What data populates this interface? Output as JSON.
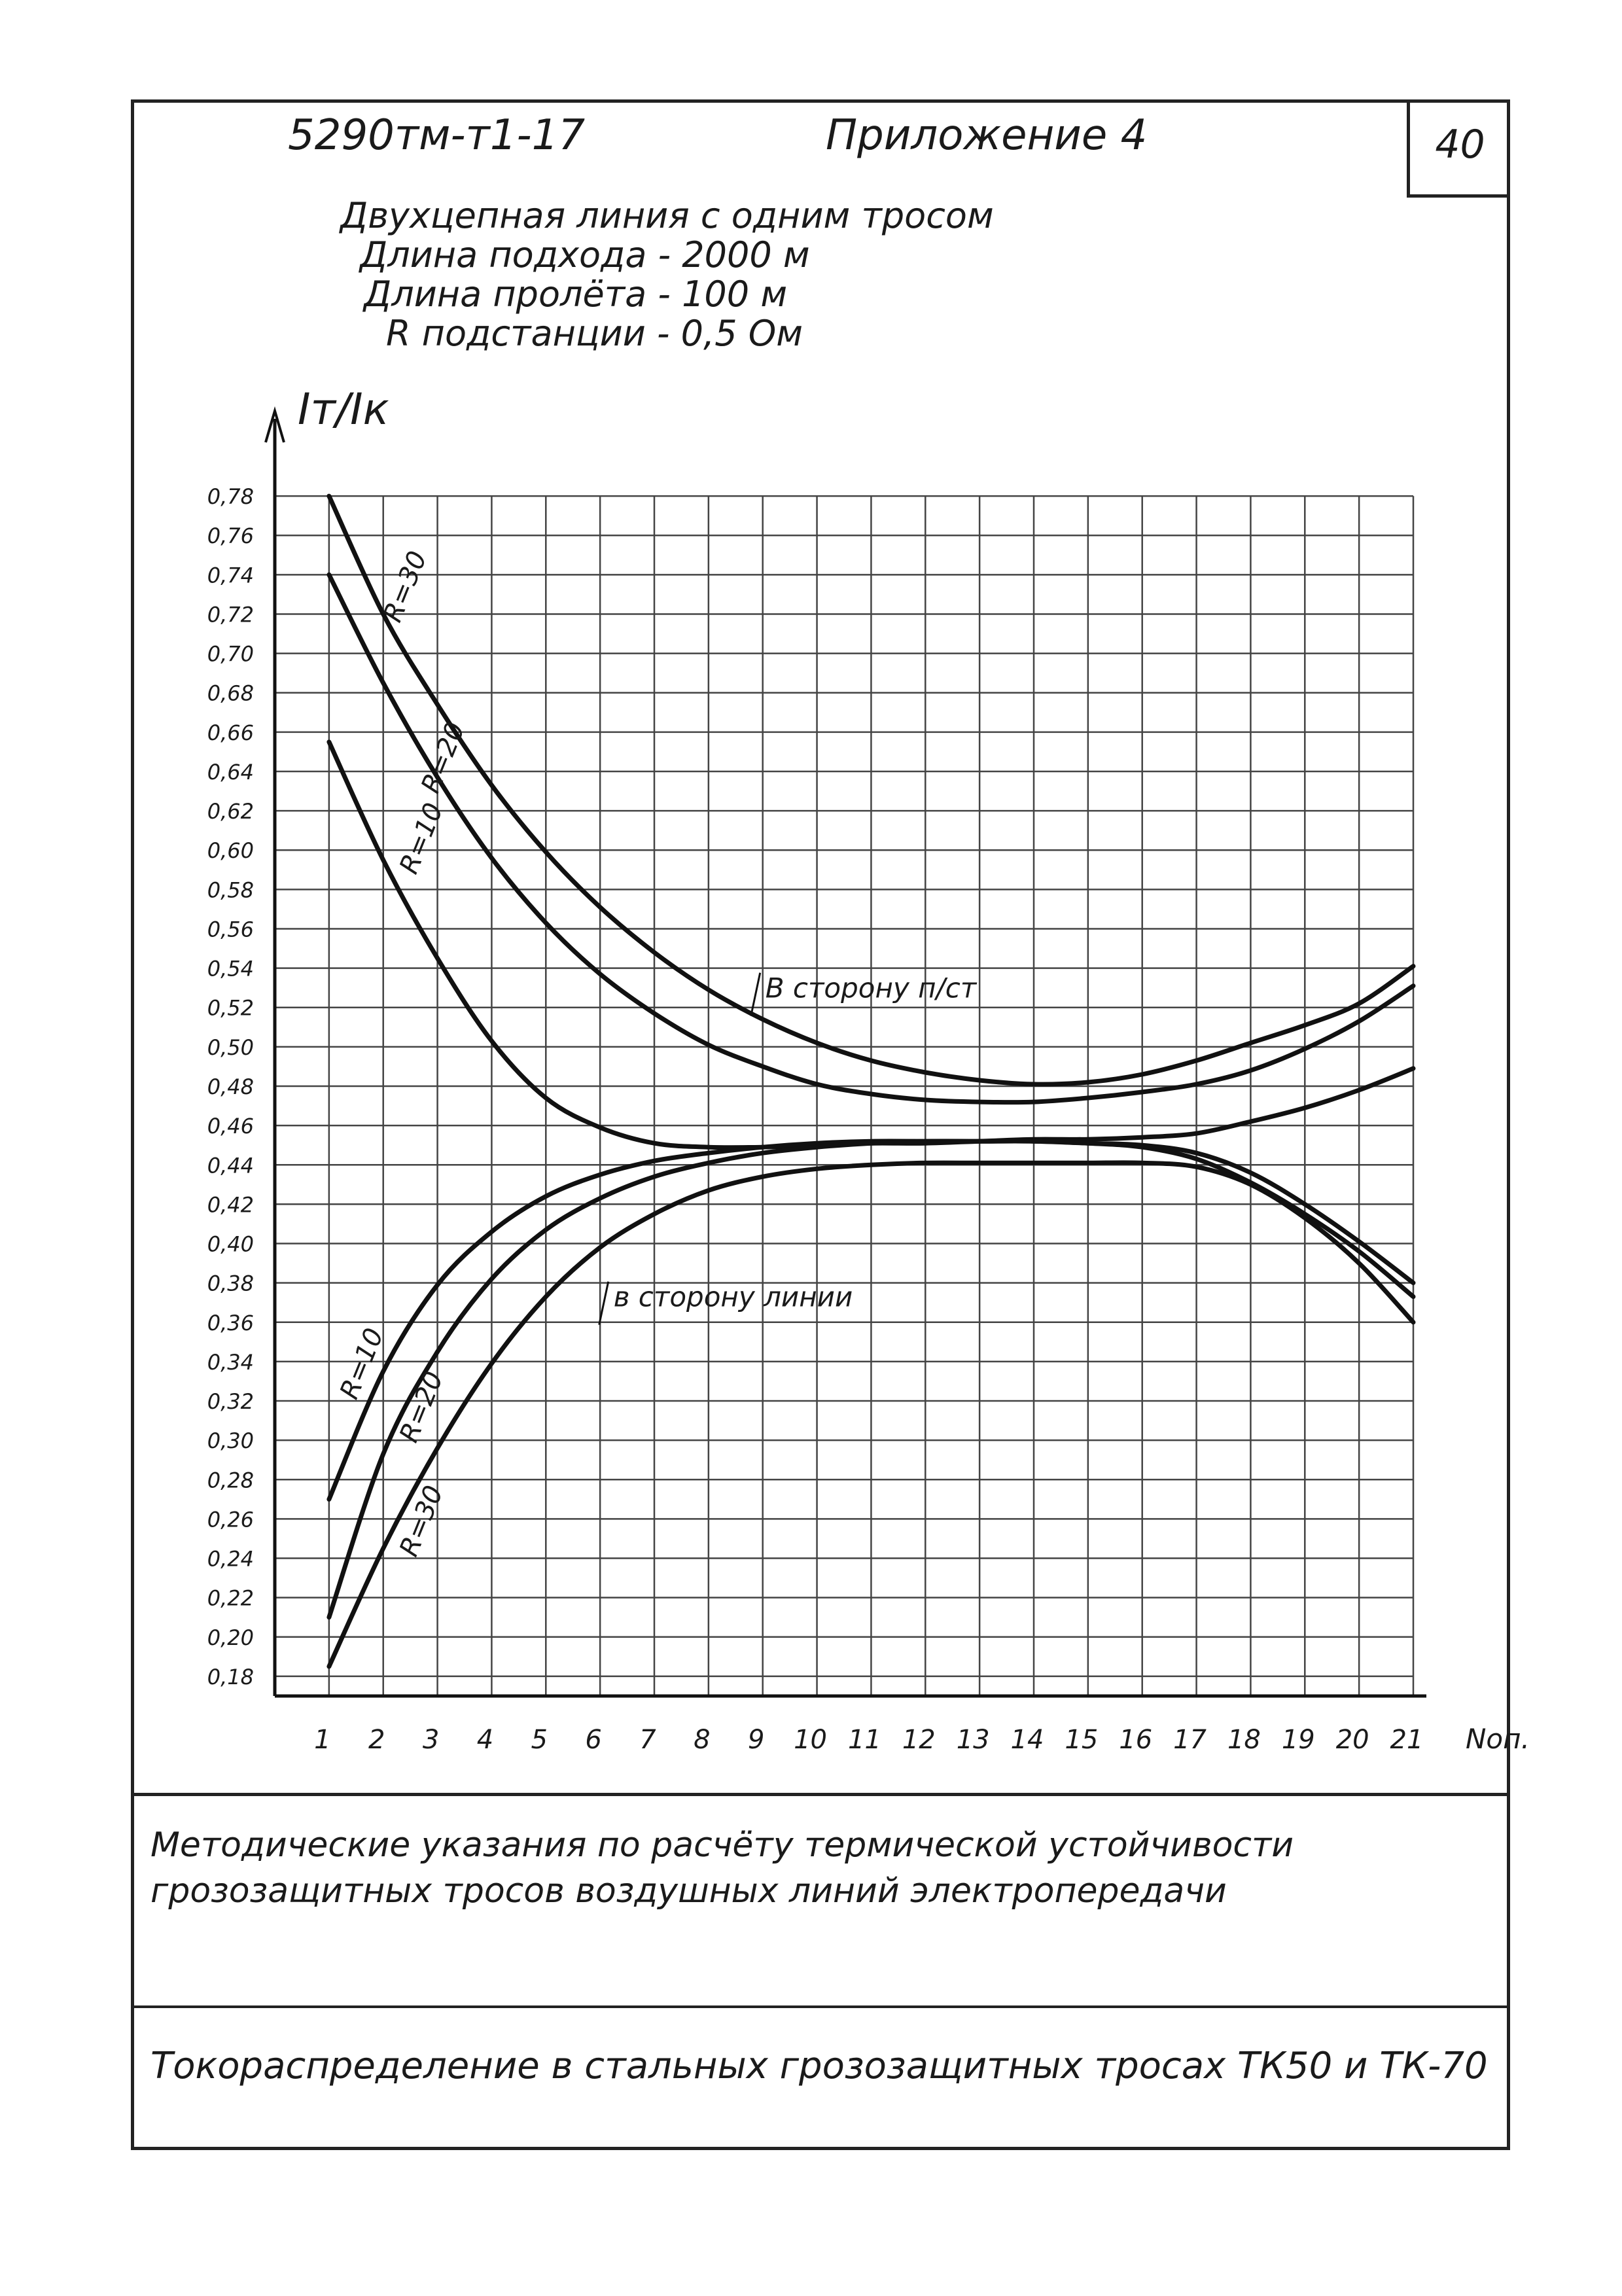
{
  "header": {
    "doc_code": "5290тм-т1-17",
    "appendix": "Приложение 4",
    "page_number": "40",
    "lines": [
      "Двухцепная линия с одним тросом",
      "Длина подхода - 2000 м",
      "Длина пролёта - 100 м",
      "R подстанции - 0,5 Ом"
    ]
  },
  "footer": {
    "method_title": "Методические указания по расчёту термической устойчивости грозозащитных тросов воздушных линий электропередачи",
    "distribution_title": "Токораспределение в стальных грозозащитных тросах ТК50 и ТК-70"
  },
  "chart_data": {
    "type": "line",
    "ylabel": "Iт/Iк",
    "xlabel": "Nоп.",
    "x": [
      1,
      2,
      3,
      4,
      5,
      6,
      7,
      8,
      9,
      10,
      11,
      12,
      13,
      14,
      15,
      16,
      17,
      18,
      19,
      20,
      21
    ],
    "xlim": [
      0,
      21
    ],
    "ylim": [
      0.17,
      0.79
    ],
    "y_ticks": [
      "0,78",
      "0,76",
      "0,74",
      "0,72",
      "0,70",
      "0,68",
      "0,66",
      "0,64",
      "0,62",
      "0,60",
      "0,58",
      "0,56",
      "0,54",
      "0,52",
      "0,50",
      "0,48",
      "0,46",
      "0,44",
      "0,42",
      "0,40",
      "0,38",
      "0,36",
      "0,34",
      "0,32",
      "0,30",
      "0,28",
      "0,26",
      "0,24",
      "0,22",
      "0,20",
      "0,18"
    ],
    "x_ticks": [
      "1",
      "2",
      "3",
      "4",
      "5",
      "6",
      "7",
      "8",
      "9",
      "10",
      "11",
      "12",
      "13",
      "14",
      "15",
      "16",
      "17",
      "18",
      "19",
      "20",
      "21"
    ],
    "grid": true,
    "annotations": [
      {
        "text": "В сторону п/ст",
        "x": 9.0,
        "y": 0.525
      },
      {
        "text": "в сторону линии",
        "x": 6.2,
        "y": 0.368
      }
    ],
    "series": [
      {
        "name": "R=30",
        "group": "В сторону п/ст",
        "label_at": [
          2.3,
          0.715
        ],
        "values": [
          0.78,
          0.72,
          0.674,
          0.633,
          0.599,
          0.571,
          0.548,
          0.529,
          0.514,
          0.502,
          0.493,
          0.487,
          0.483,
          0.481,
          0.482,
          0.486,
          0.493,
          0.502,
          0.511,
          0.522,
          0.541
        ]
      },
      {
        "name": "R=20",
        "group": "В сторону п/ст",
        "label_at": [
          3.0,
          0.628
        ],
        "values": [
          0.74,
          0.685,
          0.637,
          0.596,
          0.563,
          0.537,
          0.517,
          0.501,
          0.49,
          0.481,
          0.476,
          0.473,
          0.472,
          0.472,
          0.474,
          0.477,
          0.481,
          0.488,
          0.499,
          0.513,
          0.531
        ]
      },
      {
        "name": "R=10",
        "group": "В сторону п/ст",
        "label_at": [
          2.6,
          0.587
        ],
        "values": [
          0.655,
          0.595,
          0.545,
          0.503,
          0.474,
          0.459,
          0.451,
          0.449,
          0.449,
          0.45,
          0.451,
          0.451,
          0.452,
          0.453,
          0.453,
          0.454,
          0.456,
          0.462,
          0.469,
          0.478,
          0.489
        ]
      },
      {
        "name": "R=10",
        "group": "в сторону линии",
        "label_at": [
          1.5,
          0.32
        ],
        "values": [
          0.27,
          0.335,
          0.379,
          0.406,
          0.424,
          0.435,
          0.442,
          0.446,
          0.449,
          0.451,
          0.452,
          0.452,
          0.452,
          0.452,
          0.451,
          0.449,
          0.443,
          0.431,
          0.415,
          0.396,
          0.373
        ]
      },
      {
        "name": "R=20",
        "group": "в сторону линии",
        "label_at": [
          2.6,
          0.298
        ],
        "values": [
          0.21,
          0.293,
          0.345,
          0.382,
          0.407,
          0.423,
          0.434,
          0.441,
          0.446,
          0.449,
          0.451,
          0.452,
          0.452,
          0.452,
          0.451,
          0.45,
          0.446,
          0.436,
          0.42,
          0.401,
          0.38
        ]
      },
      {
        "name": "R=30",
        "group": "в сторону линии",
        "label_at": [
          2.6,
          0.24
        ],
        "values": [
          0.185,
          0.245,
          0.296,
          0.339,
          0.373,
          0.398,
          0.415,
          0.427,
          0.434,
          0.438,
          0.44,
          0.441,
          0.441,
          0.441,
          0.441,
          0.441,
          0.439,
          0.43,
          0.413,
          0.39,
          0.36
        ]
      }
    ]
  }
}
